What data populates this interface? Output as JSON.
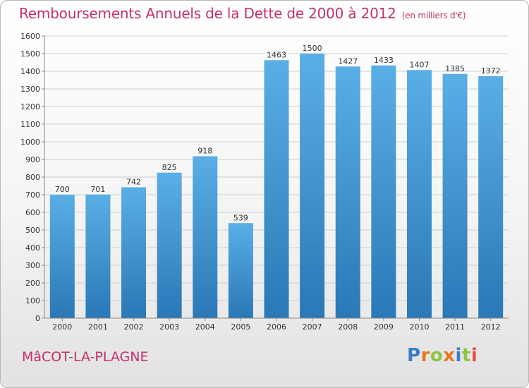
{
  "header": {
    "title": "Remboursements Annuels de la Dette de 2000 à 2012",
    "unit": "(en milliers d'€)"
  },
  "footer": {
    "place": "MâCOT-LA-PLAGNE",
    "logo": "Proxiti"
  },
  "colors": {
    "title": "#c3306a",
    "bar_top": "#5aaee6",
    "bar_bottom": "#2a78b6",
    "grid": "#cfcfcf",
    "logo_letters": [
      "#3a7fc4",
      "#e8781e",
      "#8cc63f",
      "#e8781e",
      "#3a7fc4",
      "#8cc63f",
      "#e84a4a"
    ]
  },
  "chart_data": {
    "type": "bar",
    "categories": [
      "2000",
      "2001",
      "2002",
      "2003",
      "2004",
      "2005",
      "2006",
      "2007",
      "2008",
      "2009",
      "2010",
      "2011",
      "2012"
    ],
    "values": [
      700,
      701,
      742,
      825,
      918,
      539,
      1463,
      1500,
      1427,
      1433,
      1407,
      1385,
      1372
    ],
    "ylim": [
      0,
      1600
    ],
    "yticks": [
      0,
      100,
      200,
      300,
      400,
      500,
      600,
      700,
      800,
      900,
      1000,
      1100,
      1200,
      1300,
      1400,
      1500,
      1600
    ],
    "grid": true,
    "data_labels": true
  }
}
